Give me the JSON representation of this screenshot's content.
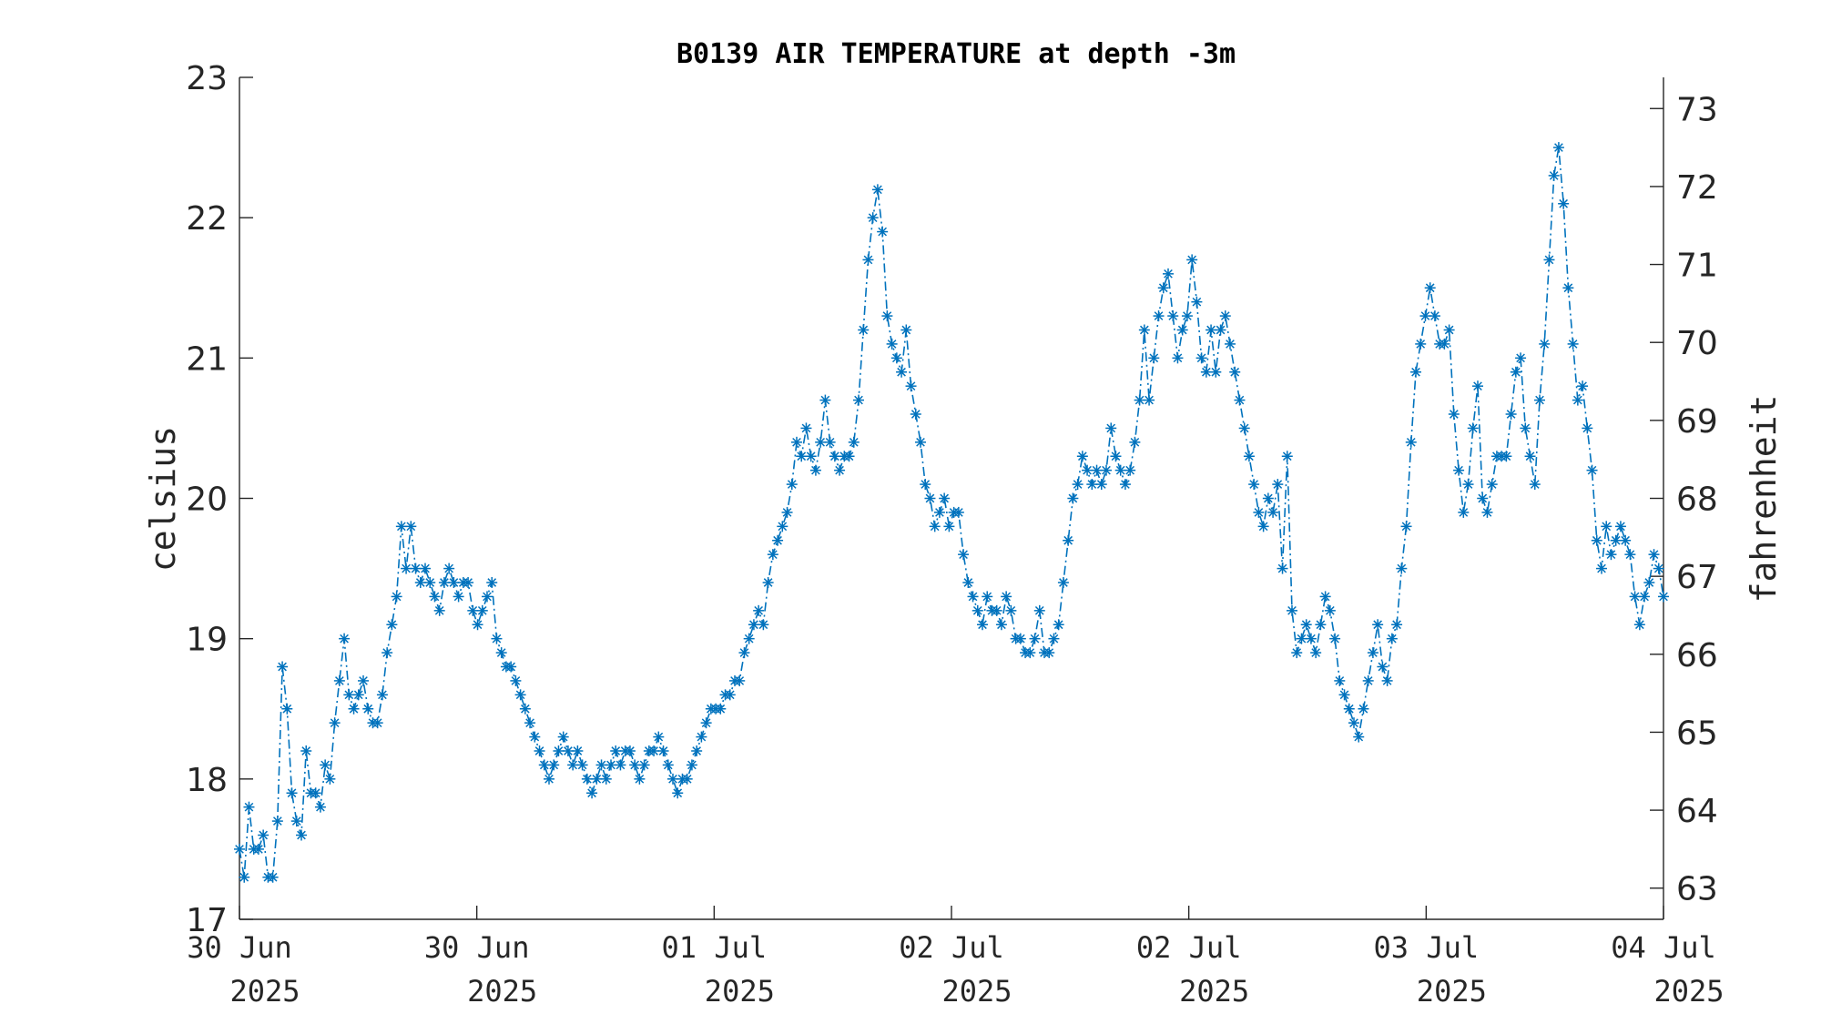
{
  "chart_data": {
    "type": "line",
    "title": "B0139 AIR TEMPERATURE at depth -3m",
    "ylabel": "celsius",
    "y2label": "fahrenheit",
    "ylim": [
      17,
      23
    ],
    "y2lim": [
      62.6,
      73.4
    ],
    "yticks": [
      "17",
      "18",
      "19",
      "20",
      "21",
      "22",
      "23"
    ],
    "y2ticks": [
      "63",
      "64",
      "65",
      "66",
      "67",
      "68",
      "69",
      "70",
      "71",
      "72",
      "73"
    ],
    "xticks": [
      {
        "line1": "30 Jun",
        "line2": "2025"
      },
      {
        "line1": "30 Jun",
        "line2": "2025"
      },
      {
        "line1": "01 Jul",
        "line2": "2025"
      },
      {
        "line1": "02 Jul",
        "line2": "2025"
      },
      {
        "line1": "02 Jul",
        "line2": "2025"
      },
      {
        "line1": "03 Jul",
        "line2": "2025"
      },
      {
        "line1": "04 Jul",
        "line2": "2025"
      }
    ],
    "marker": "asterisk",
    "line_style": "dash-dot",
    "color": "#0072BD",
    "grid": false,
    "series": [
      {
        "x_range": [
          0,
          6
        ],
        "values": [
          17.5,
          17.3,
          17.8,
          17.5,
          17.5,
          17.6,
          17.3,
          17.3,
          17.7,
          18.8,
          18.5,
          17.9,
          17.7,
          17.6,
          18.2,
          17.9,
          17.9,
          17.8,
          18.1,
          18.0,
          18.4,
          18.7,
          19.0,
          18.6,
          18.5,
          18.6,
          18.7,
          18.5,
          18.4,
          18.4,
          18.6,
          18.9,
          19.1,
          19.3,
          19.8,
          19.5,
          19.8,
          19.5,
          19.4,
          19.5,
          19.4,
          19.3,
          19.2,
          19.4,
          19.5,
          19.4,
          19.3,
          19.4,
          19.4,
          19.2,
          19.1,
          19.2,
          19.3,
          19.4,
          19.0,
          18.9,
          18.8,
          18.8,
          18.7,
          18.6,
          18.5,
          18.4,
          18.3,
          18.2,
          18.1,
          18.0,
          18.1,
          18.2,
          18.3,
          18.2,
          18.1,
          18.2,
          18.1,
          18.0,
          17.9,
          18.0,
          18.1,
          18.0,
          18.1,
          18.2,
          18.1,
          18.2,
          18.2,
          18.1,
          18.0,
          18.1,
          18.2,
          18.2,
          18.3,
          18.2,
          18.1,
          18.0,
          17.9,
          18.0,
          18.0,
          18.1,
          18.2,
          18.3,
          18.4,
          18.5,
          18.5,
          18.5,
          18.6,
          18.6,
          18.7,
          18.7,
          18.9,
          19.0,
          19.1,
          19.2,
          19.1,
          19.4,
          19.6,
          19.7,
          19.8,
          19.9,
          20.1,
          20.4,
          20.3,
          20.5,
          20.3,
          20.2,
          20.4,
          20.7,
          20.4,
          20.3,
          20.2,
          20.3,
          20.3,
          20.4,
          20.7,
          21.2,
          21.7,
          22.0,
          22.2,
          21.9,
          21.3,
          21.1,
          21.0,
          20.9,
          21.2,
          20.8,
          20.6,
          20.4,
          20.1,
          20.0,
          19.8,
          19.9,
          20.0,
          19.8,
          19.9,
          19.9,
          19.6,
          19.4,
          19.3,
          19.2,
          19.1,
          19.3,
          19.2,
          19.2,
          19.1,
          19.3,
          19.2,
          19.0,
          19.0,
          18.9,
          18.9,
          19.0,
          19.2,
          18.9,
          18.9,
          19.0,
          19.1,
          19.4,
          19.7,
          20.0,
          20.1,
          20.3,
          20.2,
          20.1,
          20.2,
          20.1,
          20.2,
          20.5,
          20.3,
          20.2,
          20.1,
          20.2,
          20.4,
          20.7,
          21.2,
          20.7,
          21.0,
          21.3,
          21.5,
          21.6,
          21.3,
          21.0,
          21.2,
          21.3,
          21.7,
          21.4,
          21.0,
          20.9,
          21.2,
          20.9,
          21.2,
          21.3,
          21.1,
          20.9,
          20.7,
          20.5,
          20.3,
          20.1,
          19.9,
          19.8,
          20.0,
          19.9,
          20.1,
          19.5,
          20.3,
          19.2,
          18.9,
          19.0,
          19.1,
          19.0,
          18.9,
          19.1,
          19.3,
          19.2,
          19.0,
          18.7,
          18.6,
          18.5,
          18.4,
          18.3,
          18.5,
          18.7,
          18.9,
          19.1,
          18.8,
          18.7,
          19.0,
          19.1,
          19.5,
          19.8,
          20.4,
          20.9,
          21.1,
          21.3,
          21.5,
          21.3,
          21.1,
          21.1,
          21.2,
          20.6,
          20.2,
          19.9,
          20.1,
          20.5,
          20.8,
          20.0,
          19.9,
          20.1,
          20.3,
          20.3,
          20.3,
          20.6,
          20.9,
          21.0,
          20.5,
          20.3,
          20.1,
          20.7,
          21.1,
          21.7,
          22.3,
          22.5,
          22.1,
          21.5,
          21.1,
          20.7,
          20.8,
          20.5,
          20.2,
          19.7,
          19.5,
          19.8,
          19.6,
          19.7,
          19.8,
          19.7,
          19.6,
          19.3,
          19.1,
          19.3,
          19.4,
          19.6,
          19.5,
          19.3
        ]
      }
    ]
  }
}
